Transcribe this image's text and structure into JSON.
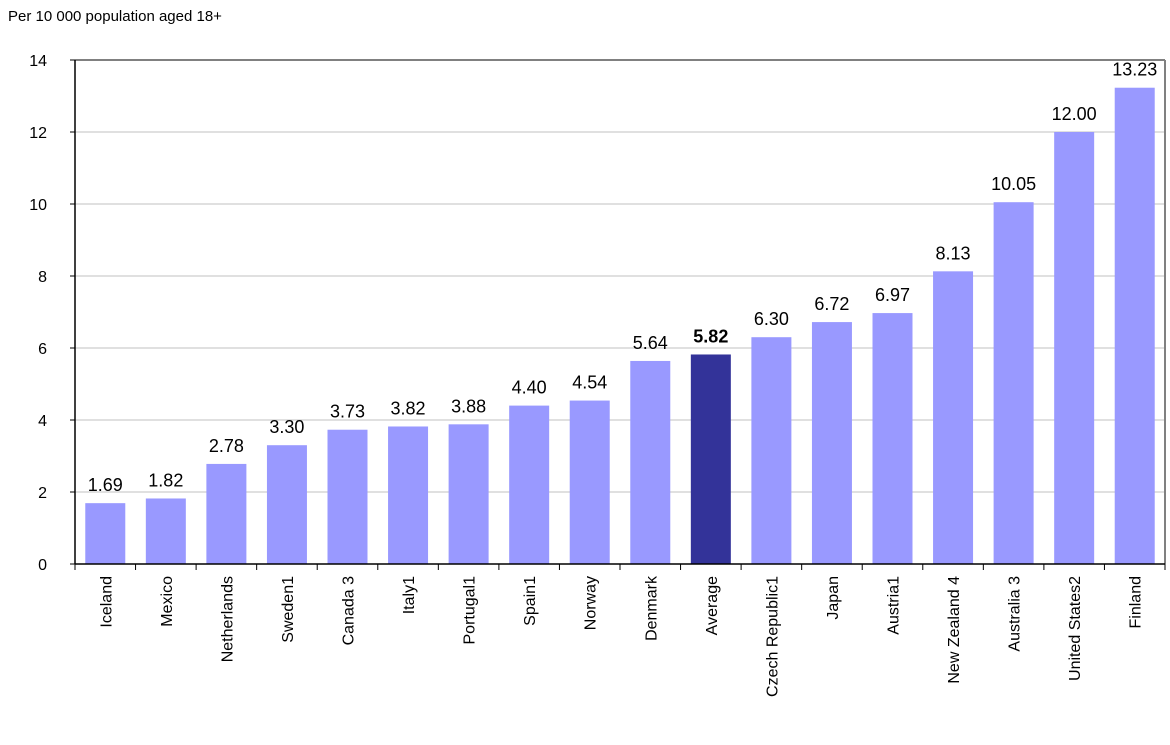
{
  "chart_data": {
    "type": "bar",
    "ylabel": "Per 10 000 population aged 18+",
    "ylim": [
      0,
      14
    ],
    "yticks": [
      0,
      2,
      4,
      6,
      8,
      10,
      12,
      14
    ],
    "grid": true,
    "categories": [
      "Iceland",
      "Mexico",
      "Netherlands",
      "Sweden1",
      "Canada 3",
      "Italy1",
      "Portugal1",
      "Spain1",
      "Norway",
      "Denmark",
      "Average",
      "Czech Republic1",
      "Japan",
      "Austria1",
      "New Zealand 4",
      "Australia 3",
      "United States2",
      "Finland"
    ],
    "values": [
      1.69,
      1.82,
      2.78,
      3.3,
      3.73,
      3.82,
      3.88,
      4.4,
      4.54,
      5.64,
      5.82,
      6.3,
      6.72,
      6.97,
      8.13,
      10.05,
      12.0,
      13.23
    ],
    "value_labels": [
      "1.69",
      "1.82",
      "2.78",
      "3.30",
      "3.73",
      "3.82",
      "3.88",
      "4.40",
      "4.54",
      "5.64",
      "5.82",
      "6.30",
      "6.72",
      "6.97",
      "8.13",
      "10.05",
      "12.00",
      "13.23"
    ],
    "highlight_category": "Average",
    "colors": {
      "bar": "#9999ff",
      "highlight": "#333399",
      "grid": "#c0c0c0",
      "frame": "#808080"
    }
  }
}
